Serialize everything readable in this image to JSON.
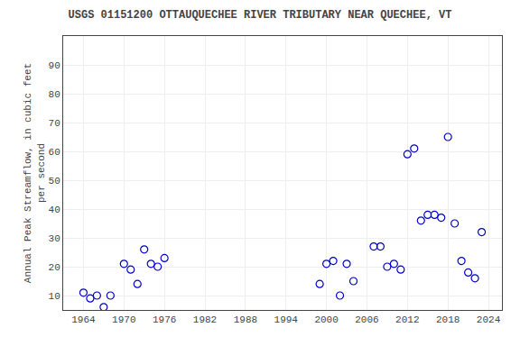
{
  "chart_data": {
    "type": "scatter",
    "title": "USGS 01151200 OTTAUQUECHEE RIVER TRIBUTARY NEAR QUECHEE, VT",
    "ylabel": "Annual Peak Streamflow, in cubic feet\nper second",
    "x": [
      1964,
      1965,
      1966,
      1967,
      1968,
      1970,
      1971,
      1972,
      1973,
      1974,
      1975,
      1976,
      1999,
      2000,
      2001,
      2002,
      2003,
      2004,
      2007,
      2008,
      2009,
      2010,
      2011,
      2012,
      2013,
      2014,
      2015,
      2016,
      2017,
      2018,
      2019,
      2020,
      2021,
      2022,
      2023
    ],
    "values": [
      11,
      9,
      10,
      6,
      10,
      21,
      19,
      14,
      26,
      21,
      20,
      23,
      14,
      21,
      22,
      10,
      21,
      15,
      27,
      27,
      20,
      21,
      19,
      59,
      61,
      36,
      38,
      38,
      37,
      65,
      35,
      22,
      18,
      16,
      32
    ],
    "xlim": [
      1961,
      2026
    ],
    "ylim": [
      5,
      100
    ],
    "xticks": [
      1964,
      1970,
      1976,
      1982,
      1988,
      1994,
      2000,
      2006,
      2012,
      2018,
      2024
    ],
    "yticks": [
      10,
      20,
      30,
      40,
      50,
      60,
      70,
      80,
      90
    ],
    "color": "#0000cc",
    "marker": "circle-open",
    "grid": true
  }
}
